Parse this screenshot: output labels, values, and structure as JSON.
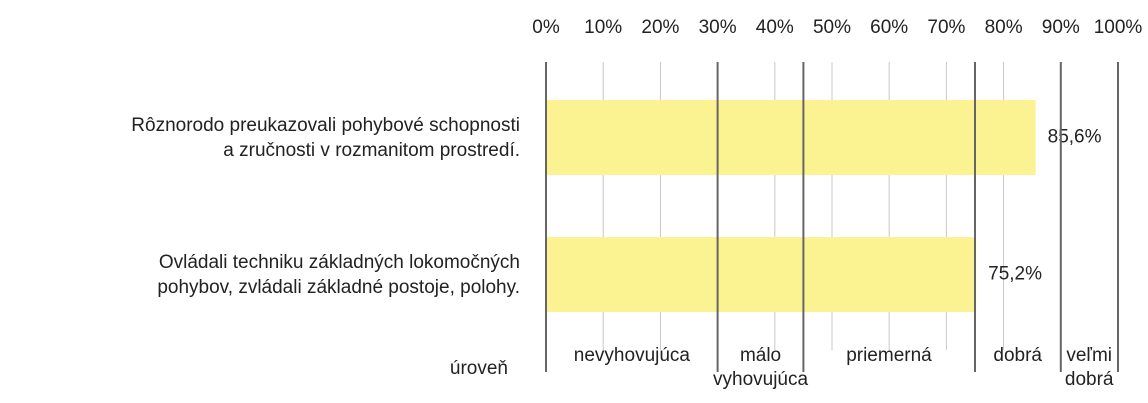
{
  "chart_data": {
    "type": "bar",
    "orientation": "horizontal",
    "categories": [
      "Rôznorodo preukazovali pohybové schopnosti\na zručnosti v rozmanitom prostredí.",
      "Ovládali techniku základných lokomočných\npohybov, zvládali základné postoje, polohy."
    ],
    "values": [
      85.6,
      75.2
    ],
    "value_labels": [
      "85,6%",
      "75,2%"
    ],
    "color": "#fbf291",
    "xlim": [
      0,
      100
    ],
    "xticks": [
      {
        "value": 0,
        "label": "0%"
      },
      {
        "value": 10,
        "label": "10%"
      },
      {
        "value": 20,
        "label": "20%"
      },
      {
        "value": 30,
        "label": "30%"
      },
      {
        "value": 40,
        "label": "40%"
      },
      {
        "value": 50,
        "label": "50%"
      },
      {
        "value": 60,
        "label": "60%"
      },
      {
        "value": 70,
        "label": "70%"
      },
      {
        "value": 80,
        "label": "80%"
      },
      {
        "value": 90,
        "label": "90%"
      },
      {
        "value": 100,
        "label": "100%"
      }
    ],
    "grid": true,
    "level_title": "úroveň",
    "level_boundaries": [
      0,
      30,
      45,
      75,
      90,
      100
    ],
    "level_names": [
      "nevyhovujúca",
      "málo\nvyhovujúca",
      "priemerná",
      "dobrá",
      "veľmi\ndobrá"
    ]
  }
}
